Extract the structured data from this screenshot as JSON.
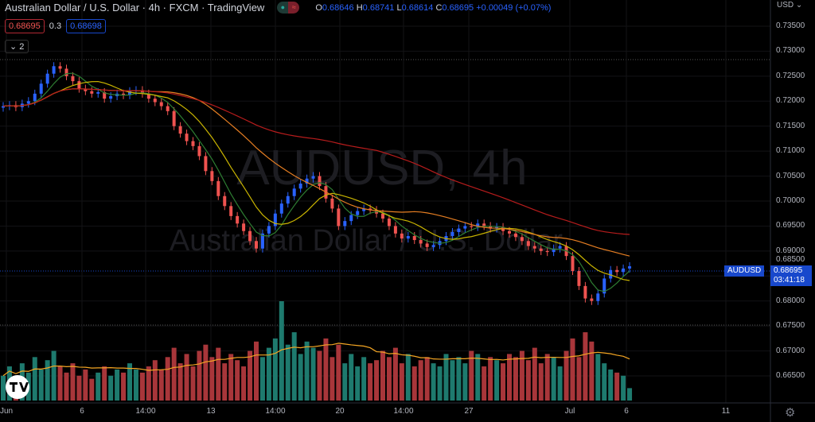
{
  "header": {
    "title": "Australian Dollar / U.S. Dollar · 4h · FXCM · TradingView",
    "ohlc": {
      "o_label": "O",
      "o": "0.68646",
      "h_label": "H",
      "h": "0.68741",
      "l_label": "L",
      "l": "0.68614",
      "c_label": "C",
      "c": "0.68695",
      "change": "+0.00049 (+0.07%)"
    },
    "sell_price": "0.68695",
    "spread": "0.3",
    "buy_price": "0.68698",
    "indicators_toggle": "2"
  },
  "watermark": {
    "symbol": "AUDUSD, 4h",
    "name": "Australian Dollar / U.S. Dollar"
  },
  "price_axis": {
    "currency": "USD",
    "ticks": [
      "0.73500",
      "0.73000",
      "0.72500",
      "0.72000",
      "0.71500",
      "0.71000",
      "0.70500",
      "0.70000",
      "0.69500",
      "0.69000",
      "0.68500",
      "0.68000",
      "0.67500",
      "0.67000",
      "0.66500"
    ],
    "last_symbol": "AUDUSD",
    "last_price": "0.68695",
    "countdown": "03:41:18"
  },
  "time_axis": [
    {
      "label": "Jun",
      "x": 8
    },
    {
      "label": "6",
      "x": 103
    },
    {
      "label": "14:00",
      "x": 183
    },
    {
      "label": "13",
      "x": 265
    },
    {
      "label": "14:00",
      "x": 346
    },
    {
      "label": "20",
      "x": 427
    },
    {
      "label": "14:00",
      "x": 507
    },
    {
      "label": "27",
      "x": 589
    },
    {
      "label": "Jul",
      "x": 716
    },
    {
      "label": "6",
      "x": 787
    },
    {
      "label": "11",
      "x": 912
    }
  ],
  "colors": {
    "up": "#2962ff",
    "down": "#ef5350",
    "vol_up": "#1e7a6e",
    "vol_down": "#a8363a",
    "ma_fast": "#2e7d32",
    "ma_mid": "#c9b400",
    "ma_slow": "#e67e22",
    "ma_long": "#b71c1c",
    "vol_ma": "#f5a623"
  },
  "chart_data": {
    "type": "candlestick",
    "ylim": [
      0.6625,
      0.7375
    ],
    "closes": [
      0.719,
      0.7192,
      0.7188,
      0.7195,
      0.72,
      0.7215,
      0.7235,
      0.7255,
      0.727,
      0.7265,
      0.725,
      0.724,
      0.7225,
      0.722,
      0.7215,
      0.7218,
      0.7205,
      0.721,
      0.7215,
      0.7212,
      0.722,
      0.7222,
      0.7215,
      0.7205,
      0.7198,
      0.719,
      0.718,
      0.715,
      0.7135,
      0.712,
      0.711,
      0.709,
      0.706,
      0.704,
      0.701,
      0.699,
      0.697,
      0.6955,
      0.694,
      0.692,
      0.6905,
      0.6935,
      0.695,
      0.6975,
      0.6995,
      0.701,
      0.7025,
      0.7035,
      0.7045,
      0.705,
      0.703,
      0.7005,
      0.6985,
      0.695,
      0.696,
      0.6972,
      0.698,
      0.6985,
      0.6982,
      0.6975,
      0.6965,
      0.695,
      0.6935,
      0.6925,
      0.693,
      0.6922,
      0.6915,
      0.6908,
      0.6912,
      0.692,
      0.693,
      0.6938,
      0.6945,
      0.695,
      0.6948,
      0.6955,
      0.695,
      0.6945,
      0.6948,
      0.694,
      0.6935,
      0.6928,
      0.692,
      0.691,
      0.6905,
      0.69,
      0.6898,
      0.6905,
      0.691,
      0.689,
      0.686,
      0.683,
      0.6805,
      0.68,
      0.6815,
      0.6845,
      0.6862,
      0.6858,
      0.6865,
      0.68695
    ],
    "volumes": [
      40,
      55,
      35,
      60,
      45,
      70,
      50,
      65,
      80,
      55,
      45,
      60,
      40,
      50,
      35,
      45,
      55,
      40,
      50,
      45,
      60,
      50,
      45,
      55,
      65,
      50,
      70,
      85,
      60,
      75,
      55,
      80,
      90,
      70,
      85,
      60,
      75,
      65,
      55,
      80,
      95,
      70,
      85,
      100,
      160,
      90,
      110,
      75,
      95,
      85,
      80,
      100,
      70,
      90,
      60,
      75,
      55,
      70,
      60,
      65,
      80,
      70,
      85,
      60,
      75,
      55,
      65,
      70,
      60,
      55,
      75,
      65,
      70,
      60,
      80,
      75,
      55,
      70,
      65,
      60,
      75,
      70,
      80,
      65,
      85,
      60,
      75,
      70,
      55,
      80,
      100,
      70,
      110,
      95,
      75,
      60,
      50,
      45,
      40,
      20
    ]
  }
}
